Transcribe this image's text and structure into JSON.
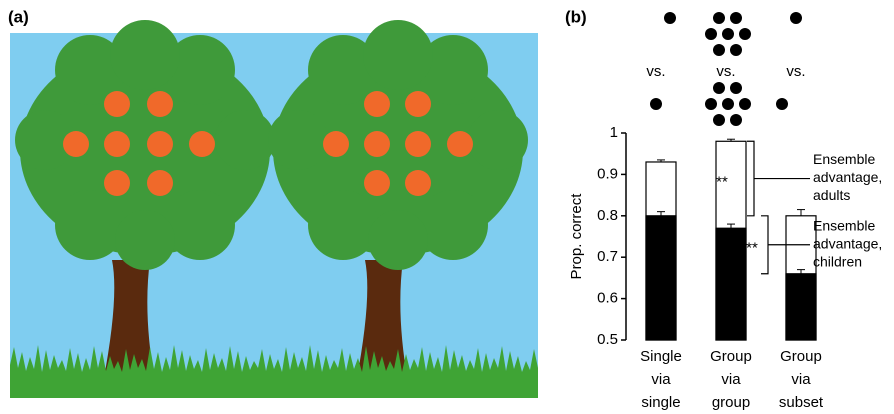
{
  "panel_labels": [
    "(a)",
    "(b)"
  ],
  "comparisons": [
    "vs.",
    "vs.",
    "vs."
  ],
  "chart_data": {
    "type": "bar",
    "y_label": "Prop. correct",
    "categories": [
      [
        "Single",
        "via",
        "single"
      ],
      [
        "Group",
        "via",
        "group"
      ],
      [
        "Group",
        "via",
        "subset"
      ]
    ],
    "series": [
      {
        "color": "#ffffff",
        "values": [
          0.93,
          0.98,
          0.8
        ],
        "errors": [
          0.005,
          0.005,
          0.015
        ]
      },
      {
        "color": "#000000",
        "values": [
          0.8,
          0.77,
          0.66
        ],
        "errors": [
          0.01,
          0.01,
          0.01
        ]
      }
    ],
    "ylim": [
      0.5,
      1
    ],
    "yticks": [
      0.5,
      0.6,
      0.7,
      0.8,
      0.9,
      1
    ],
    "significance": [
      "**",
      "**"
    ],
    "annotations": [
      [
        "Ensemble",
        "advantage,",
        "adults"
      ],
      [
        "Ensemble",
        "advantage,",
        "children"
      ]
    ]
  }
}
